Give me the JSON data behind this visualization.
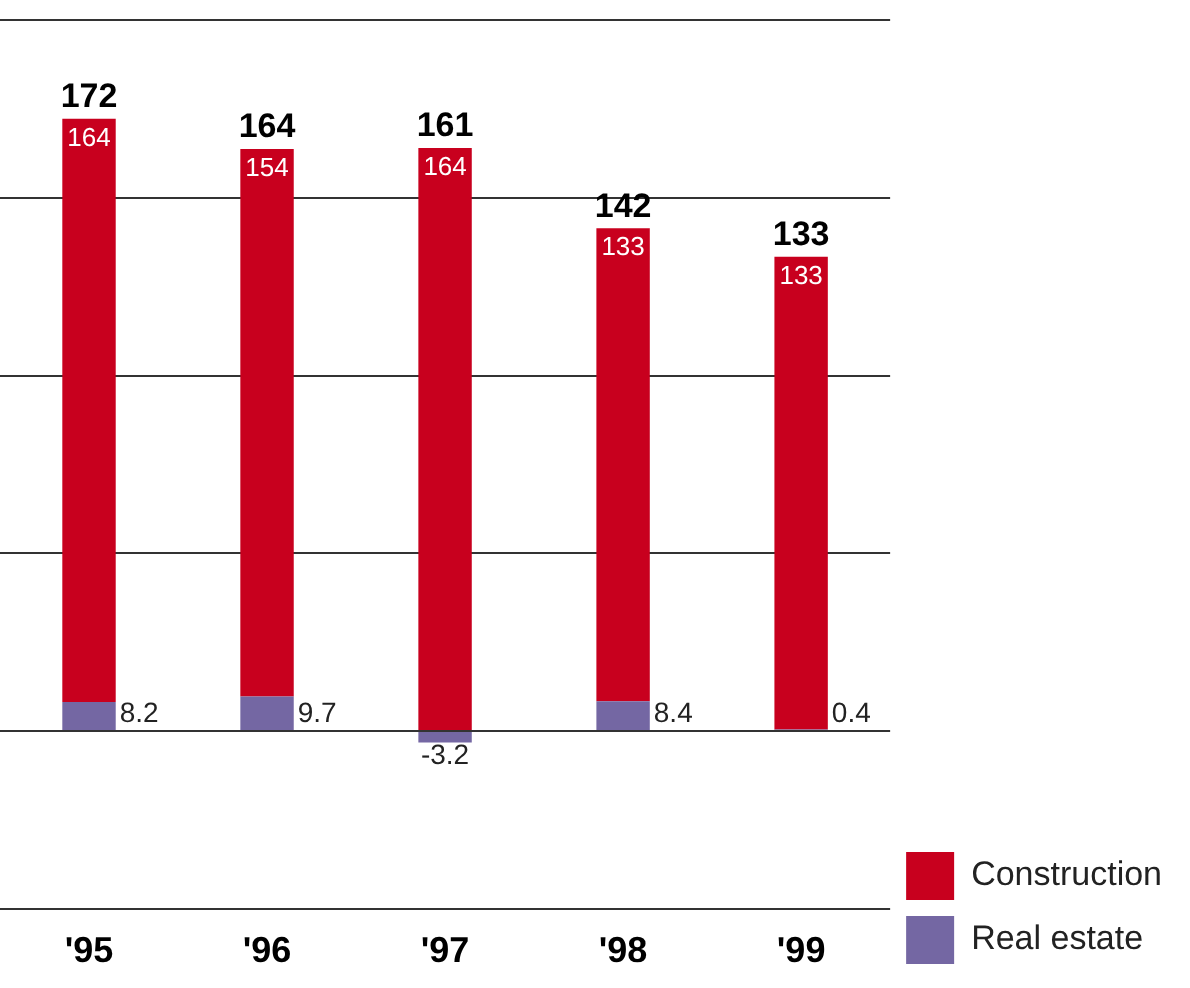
{
  "chart_data": {
    "type": "bar",
    "stacked": true,
    "categories": [
      "'95",
      "'96",
      "'97",
      "'98",
      "'99"
    ],
    "series": [
      {
        "name": "Real estate",
        "color": "#7467a3",
        "values": [
          8.2,
          9.7,
          -3.2,
          8.4,
          0.4
        ]
      },
      {
        "name": "Construction",
        "color": "#c8001e",
        "values": [
          164,
          154,
          164,
          133,
          133
        ]
      }
    ],
    "totals": [
      "172",
      "164",
      "161",
      "142",
      "133"
    ],
    "data_labels": true,
    "tick_labels": "x",
    "grid": "y",
    "legend": "bottom right"
  }
}
